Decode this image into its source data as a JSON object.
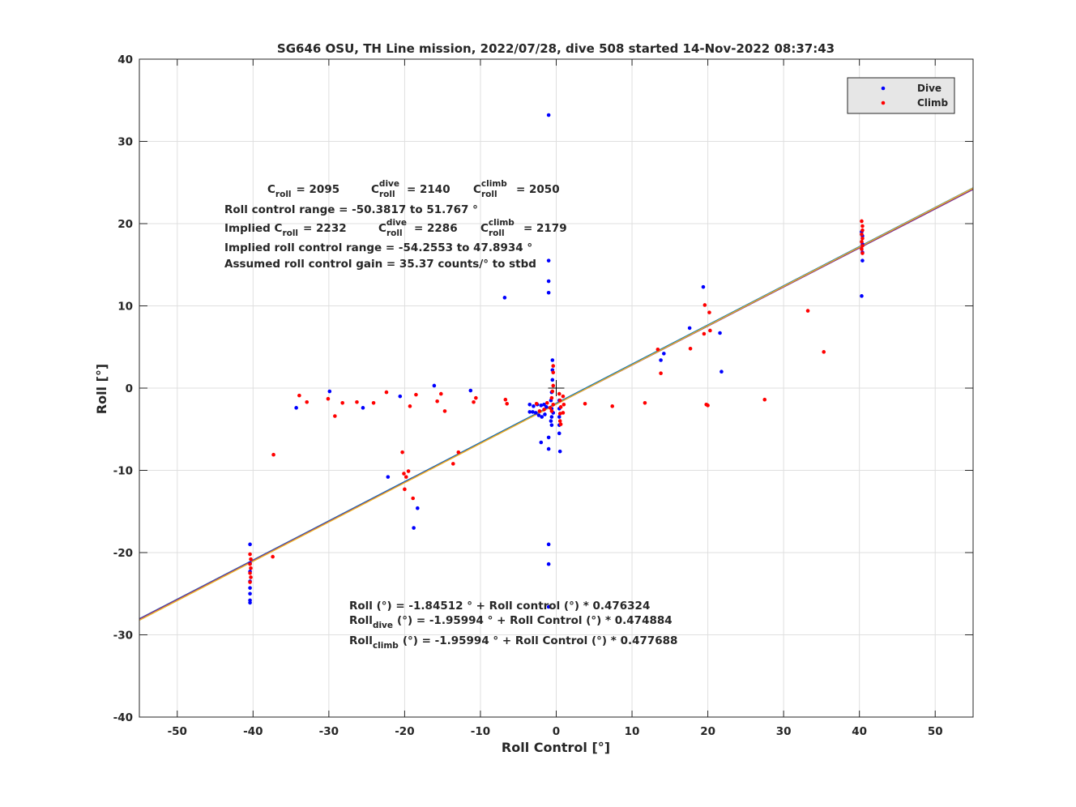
{
  "chart_data": {
    "type": "scatter",
    "title": "SG646 OSU, TH Line mission, 2022/07/28, dive 508 started 14-Nov-2022 08:37:43",
    "xlabel": "Roll Control [°]",
    "ylabel": "Roll [°]",
    "xlim": [
      -55,
      55
    ],
    "ylim": [
      -40,
      40
    ],
    "x_ticks": [
      -50,
      -40,
      -30,
      -20,
      -10,
      0,
      10,
      20,
      30,
      40,
      50
    ],
    "y_ticks": [
      -40,
      -30,
      -20,
      -10,
      0,
      10,
      20,
      30,
      40
    ],
    "x_tick_labels": [
      "-50",
      "-40",
      "-30",
      "-20",
      "-10",
      "0",
      "10",
      "20",
      "30",
      "40",
      "50"
    ],
    "y_tick_labels": [
      "-40",
      "-30",
      "-20",
      "-10",
      "0",
      "10",
      "20",
      "30",
      "40"
    ],
    "grid": true,
    "legend_position": "top-right",
    "colors": {
      "dive": "#0000ff",
      "climb": "#ff0000",
      "fit_all": "#0072bd",
      "fit_dive": "#7e2f8e",
      "fit_climb": "#edb120"
    },
    "series": [
      {
        "name": "Dive",
        "color": "#0000ff",
        "points": [
          [
            -1.0,
            33.2
          ],
          [
            -1.0,
            15.5
          ],
          [
            -1.0,
            13.0
          ],
          [
            -1.0,
            11.6
          ],
          [
            -6.8,
            11.0
          ],
          [
            -0.5,
            3.4
          ],
          [
            -0.5,
            2.2
          ],
          [
            -0.5,
            1.0
          ],
          [
            -0.6,
            -0.5
          ],
          [
            -0.7,
            -1.5
          ],
          [
            -0.6,
            -2.5
          ],
          [
            -0.6,
            -3.5
          ],
          [
            -0.6,
            -4.5
          ],
          [
            -0.4,
            -3.0
          ],
          [
            -0.7,
            -4.0
          ],
          [
            0.4,
            -1.5
          ],
          [
            0.4,
            -2.5
          ],
          [
            0.4,
            -3.5
          ],
          [
            0.4,
            -4.5
          ],
          [
            0.4,
            -5.5
          ],
          [
            0.5,
            -7.7
          ],
          [
            -3.5,
            -2.0
          ],
          [
            -3.0,
            -2.2
          ],
          [
            -2.5,
            -2.0
          ],
          [
            -2.0,
            -2.1
          ],
          [
            -1.6,
            -2.0
          ],
          [
            -1.3,
            -2.3
          ],
          [
            -3.5,
            -2.9
          ],
          [
            -3.1,
            -2.9
          ],
          [
            -2.7,
            -3.0
          ],
          [
            -2.3,
            -3.3
          ],
          [
            -1.9,
            -3.5
          ],
          [
            -1.5,
            -3.2
          ],
          [
            -2.0,
            -6.6
          ],
          [
            -1.0,
            -6.0
          ],
          [
            -1.0,
            -7.4
          ],
          [
            -1.0,
            -19.0
          ],
          [
            -1.0,
            -21.4
          ],
          [
            -1.0,
            -26.6
          ],
          [
            -40.4,
            -19.0
          ],
          [
            -40.4,
            -21.3
          ],
          [
            -40.4,
            -22.3
          ],
          [
            -40.4,
            -23.5
          ],
          [
            -40.4,
            -24.3
          ],
          [
            -40.4,
            -25.0
          ],
          [
            -40.4,
            -25.8
          ],
          [
            -40.4,
            -26.1
          ],
          [
            -34.3,
            -2.4
          ],
          [
            -29.9,
            -0.4
          ],
          [
            -25.5,
            -2.4
          ],
          [
            -20.6,
            -1.0
          ],
          [
            -16.1,
            0.3
          ],
          [
            -11.3,
            -0.3
          ],
          [
            -22.2,
            -10.8
          ],
          [
            -18.8,
            -17.0
          ],
          [
            -18.3,
            -14.6
          ],
          [
            40.3,
            11.2
          ],
          [
            40.4,
            15.5
          ],
          [
            40.4,
            16.5
          ],
          [
            40.4,
            17.5
          ],
          [
            40.4,
            18.5
          ],
          [
            40.3,
            19.0
          ],
          [
            19.4,
            12.3
          ],
          [
            17.6,
            7.3
          ],
          [
            21.6,
            6.7
          ],
          [
            21.8,
            2.0
          ],
          [
            13.8,
            3.4
          ],
          [
            14.2,
            4.2
          ]
        ]
      },
      {
        "name": "Climb",
        "color": "#ff0000",
        "points": [
          [
            40.3,
            20.3
          ],
          [
            40.4,
            19.7
          ],
          [
            40.4,
            19.2
          ],
          [
            40.3,
            18.7
          ],
          [
            40.4,
            18.2
          ],
          [
            40.3,
            17.8
          ],
          [
            40.4,
            17.3
          ],
          [
            40.3,
            16.9
          ],
          [
            40.4,
            16.4
          ],
          [
            -40.4,
            -20.2
          ],
          [
            -40.3,
            -20.8
          ],
          [
            -40.4,
            -21.4
          ],
          [
            -40.3,
            -21.9
          ],
          [
            -40.4,
            -22.5
          ],
          [
            -40.3,
            -23.0
          ],
          [
            -40.4,
            -23.6
          ],
          [
            -37.3,
            -8.1
          ],
          [
            -37.4,
            -20.5
          ],
          [
            -33.9,
            -0.9
          ],
          [
            -32.9,
            -1.7
          ],
          [
            -30.1,
            -1.3
          ],
          [
            -29.2,
            -3.4
          ],
          [
            -28.2,
            -1.8
          ],
          [
            -26.3,
            -1.7
          ],
          [
            -24.1,
            -1.8
          ],
          [
            -22.4,
            -0.5
          ],
          [
            -19.3,
            -2.2
          ],
          [
            -18.5,
            -0.8
          ],
          [
            -15.7,
            -1.6
          ],
          [
            -15.2,
            -0.7
          ],
          [
            -14.7,
            -2.8
          ],
          [
            -10.9,
            -1.7
          ],
          [
            -10.6,
            -1.2
          ],
          [
            -20.3,
            -7.8
          ],
          [
            -20.1,
            -10.4
          ],
          [
            -19.8,
            -10.8
          ],
          [
            -19.5,
            -10.1
          ],
          [
            -20.0,
            -12.3
          ],
          [
            -18.9,
            -13.4
          ],
          [
            -12.9,
            -7.8
          ],
          [
            -13.6,
            -9.2
          ],
          [
            -6.7,
            -1.4
          ],
          [
            -6.5,
            -1.9
          ],
          [
            -0.4,
            2.7
          ],
          [
            -0.4,
            1.9
          ],
          [
            -0.4,
            0.3
          ],
          [
            -0.5,
            -0.4
          ],
          [
            -0.6,
            -1.2
          ],
          [
            -0.4,
            -2.0
          ],
          [
            -0.6,
            -2.8
          ],
          [
            0.4,
            -0.7
          ],
          [
            0.5,
            -1.5
          ],
          [
            0.6,
            -2.3
          ],
          [
            0.5,
            -3.1
          ],
          [
            0.5,
            -4.0
          ],
          [
            0.6,
            -4.4
          ],
          [
            0.9,
            -1.0
          ],
          [
            1.0,
            -2.0
          ],
          [
            0.9,
            -3.0
          ],
          [
            -1.2,
            -1.8
          ],
          [
            -1.6,
            -2.6
          ],
          [
            -2.6,
            -1.9
          ],
          [
            -2.2,
            -2.8
          ],
          [
            -0.8,
            -2.4
          ],
          [
            3.8,
            -1.9
          ],
          [
            7.4,
            -2.2
          ],
          [
            11.7,
            -1.8
          ],
          [
            13.4,
            4.7
          ],
          [
            13.8,
            1.8
          ],
          [
            17.7,
            4.8
          ],
          [
            19.6,
            10.1
          ],
          [
            19.5,
            6.6
          ],
          [
            20.2,
            9.2
          ],
          [
            19.8,
            -2.0
          ],
          [
            20.0,
            -2.1
          ],
          [
            20.3,
            7.0
          ],
          [
            27.5,
            -1.4
          ],
          [
            33.2,
            9.4
          ],
          [
            35.3,
            4.4
          ]
        ]
      }
    ],
    "fit_lines": [
      {
        "intercept": -1.84512,
        "slope": 0.476324,
        "color": "#0072bd"
      },
      {
        "intercept": -1.95994,
        "slope": 0.474884,
        "color": "#7e2f8e"
      },
      {
        "intercept": -1.95994,
        "slope": 0.477688,
        "color": "#edb120"
      }
    ],
    "centre_marker": [
      0,
      0
    ],
    "annotations": {
      "c_roll": {
        "label": "C",
        "sub": "roll",
        "value": "= 2095"
      },
      "c_roll_dive": {
        "label": "C",
        "sup": "dive",
        "sub": "roll",
        "value": "= 2140"
      },
      "c_roll_climb": {
        "label": "C",
        "sup": "climb",
        "sub": "roll",
        "value": "= 2050"
      },
      "roll_control_range": "Roll control range = -50.3817 to 51.767 °",
      "implied_prefix": "Implied C",
      "implied_sub": "roll",
      "implied_value": "= 2232",
      "implied_dive": {
        "label": "C",
        "sup": "dive",
        "sub": "roll",
        "value": "= 2286"
      },
      "implied_climb": {
        "label": "C",
        "sup": "climb",
        "sub": "roll",
        "value": "= 2179"
      },
      "implied_range": "Implied roll control range = -54.2553 to 47.8934 °",
      "gain": "Assumed roll control gain = 35.37 counts/° to stbd",
      "eq_all": "Roll (°) = -1.84512 ° + Roll control (°) * 0.476324",
      "eq_dive_prefix": "Roll",
      "eq_dive_sub": "dive",
      "eq_dive_rest": "(°) = -1.95994 ° + Roll Control (°) * 0.474884",
      "eq_climb_prefix": "Roll",
      "eq_climb_sub": "climb",
      "eq_climb_rest": "(°) = -1.95994 ° + Roll Control (°) * 0.477688"
    }
  }
}
